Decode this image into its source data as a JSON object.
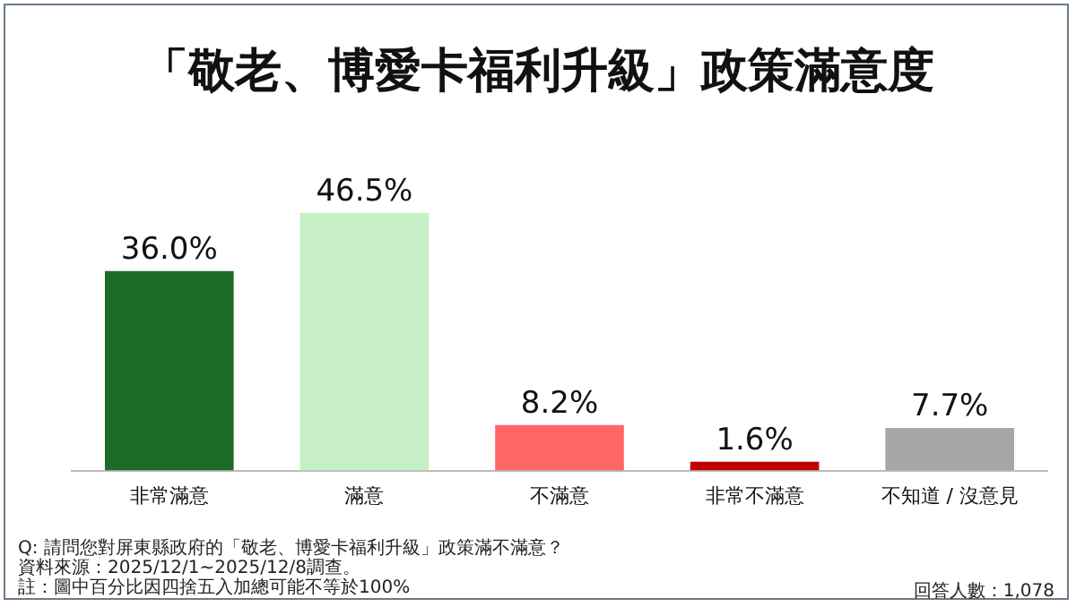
{
  "chart_data": {
    "type": "bar",
    "title": "「敬老、博愛卡福利升級」政策滿意度",
    "categories": [
      "非常滿意",
      "滿意",
      "不滿意",
      "非常不滿意",
      "不知道 / 沒意見"
    ],
    "values": [
      36.0,
      46.5,
      8.2,
      1.6,
      7.7
    ],
    "colors": [
      "#1e6b28",
      "#c6efc6",
      "#ff6666",
      "#c00000",
      "#a6a6a6"
    ],
    "value_labels": [
      "36.0%",
      "46.5%",
      "8.2%",
      "1.6%",
      "7.7%"
    ],
    "grid": false,
    "legend": false,
    "tick_labels": "x",
    "annotations": [
      "Q: 請問您對屏東縣政府的「敬老、博愛卡福利升級」政策滿不滿意？",
      "資料來源：2025/12/1~2025/12/8調查。",
      "註：圖中百分比因四捨五入加總可能不等於100%",
      "回答人數：1,078"
    ]
  }
}
